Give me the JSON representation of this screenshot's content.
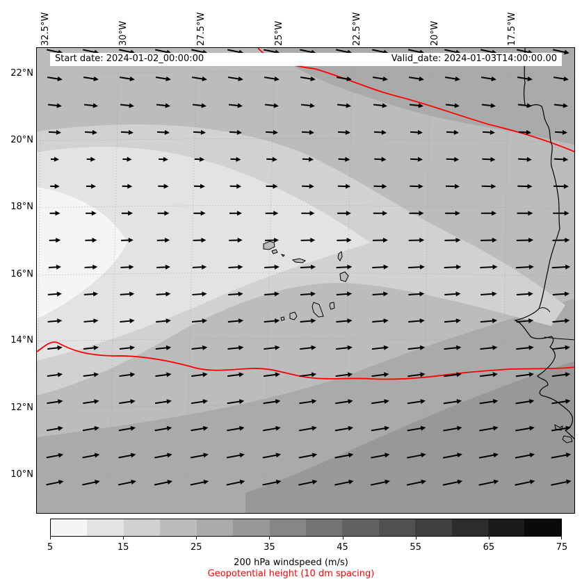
{
  "map": {
    "longitude_labels": [
      "32.5°W",
      "30°W",
      "27.5°W",
      "25°W",
      "22.5°W",
      "20°W",
      "17.5°W"
    ],
    "latitude_labels": [
      "22°N",
      "20°N",
      "18°N",
      "16°N",
      "14°N",
      "12°N",
      "10°N"
    ],
    "start_date": "Start date: 2024-01-02_00:00:00",
    "valid_date": "Valid_date: 2024-01-03T14:00:00.00",
    "colors": {
      "contour_line": "#ff0000",
      "coastline": "#000000",
      "arrow": "#000000"
    }
  },
  "colorbar": {
    "tick_labels": [
      "5",
      "15",
      "25",
      "35",
      "45",
      "55",
      "65",
      "75"
    ],
    "levels": [
      5,
      10,
      15,
      20,
      25,
      30,
      35,
      40,
      45,
      50,
      55,
      60,
      65,
      70,
      75
    ],
    "colors": [
      "#f5f5f5",
      "#e3e3e3",
      "#d1d1d1",
      "#bcbcbc",
      "#aaaaaa",
      "#989898",
      "#868686",
      "#747474",
      "#626262",
      "#515151",
      "#3f3f3f",
      "#2c2c2c",
      "#1b1b1b",
      "#0a0a0a"
    ],
    "label": "200 hPa windspeed (m/s)",
    "secondary_label": "Geopotential height (10 dm spacing)"
  }
}
